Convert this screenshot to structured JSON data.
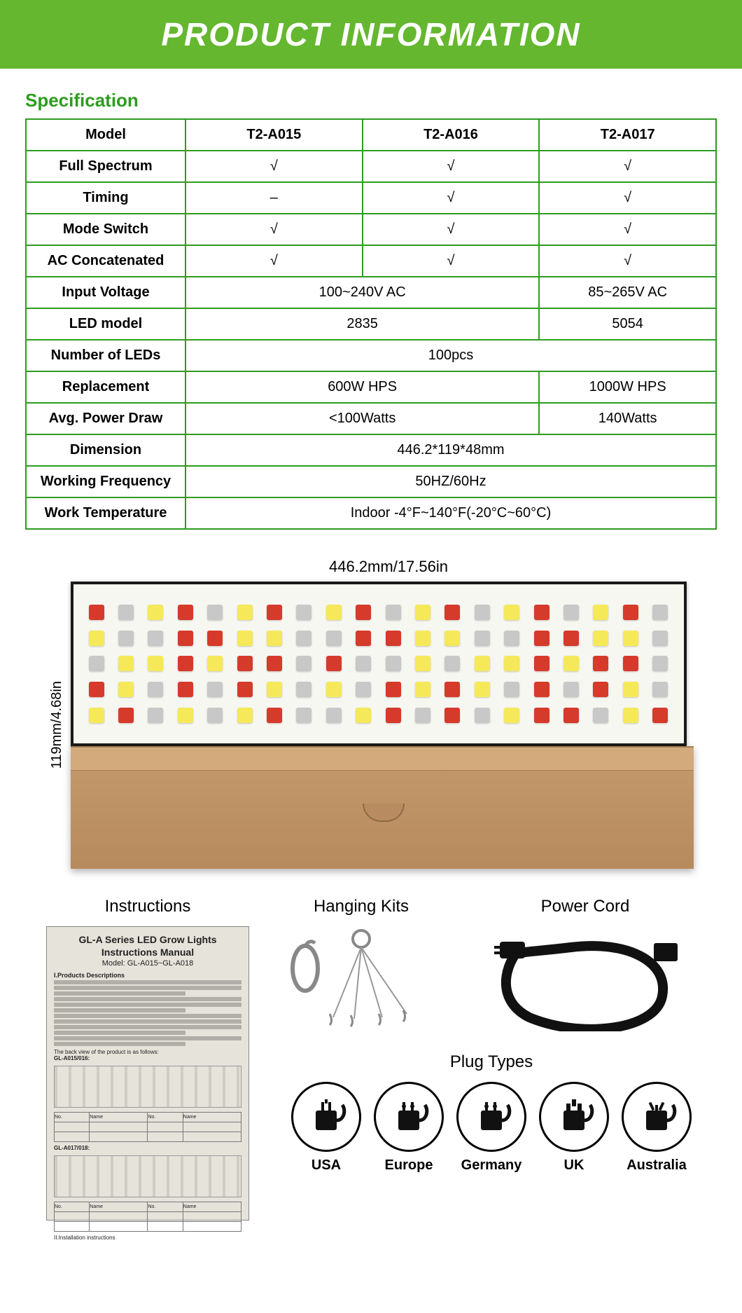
{
  "banner": "PRODUCT INFORMATION",
  "spec_heading": "Specification",
  "colors": {
    "accent": "#64b72f",
    "border": "#2d9c1f",
    "text": "#000000",
    "bg": "#ffffff"
  },
  "table": {
    "header": [
      "Model",
      "T2-A015",
      "T2-A016",
      "T2-A017"
    ],
    "rows": [
      {
        "label": "Full Spectrum",
        "cells": [
          "√",
          "√",
          "√"
        ],
        "spans": [
          1,
          1,
          1
        ]
      },
      {
        "label": "Timing",
        "cells": [
          "–",
          "√",
          "√"
        ],
        "spans": [
          1,
          1,
          1
        ]
      },
      {
        "label": "Mode Switch",
        "cells": [
          "√",
          "√",
          "√"
        ],
        "spans": [
          1,
          1,
          1
        ]
      },
      {
        "label": "AC Concatenated",
        "cells": [
          "√",
          "√",
          "√"
        ],
        "spans": [
          1,
          1,
          1
        ]
      },
      {
        "label": "Input Voltage",
        "cells": [
          "100~240V AC",
          "85~265V AC"
        ],
        "spans": [
          2,
          1
        ]
      },
      {
        "label": "LED model",
        "cells": [
          "2835",
          "5054"
        ],
        "spans": [
          2,
          1
        ]
      },
      {
        "label": "Number of LEDs",
        "cells": [
          "100pcs"
        ],
        "spans": [
          3
        ]
      },
      {
        "label": "Replacement",
        "cells": [
          "600W HPS",
          "1000W HPS"
        ],
        "spans": [
          2,
          1
        ]
      },
      {
        "label": "Avg. Power Draw",
        "cells": [
          "<100Watts",
          "140Watts"
        ],
        "spans": [
          2,
          1
        ]
      },
      {
        "label": "Dimension",
        "cells": [
          "446.2*119*48mm"
        ],
        "spans": [
          3
        ]
      },
      {
        "label": "Working Frequency",
        "cells": [
          "50HZ/60Hz"
        ],
        "spans": [
          3
        ]
      },
      {
        "label": "Work Temperature",
        "cells": [
          "Indoor -4°F~140°F(-20°C~60°C)"
        ],
        "spans": [
          3
        ]
      }
    ]
  },
  "dimensions": {
    "width_label": "446.2mm/17.56in",
    "height_label": "119mm/4.68in"
  },
  "led_panel": {
    "rows": 5,
    "cols": 20,
    "colors": [
      "#d63a2a",
      "#e8a23a",
      "#f5e95a",
      "#3a5fd6",
      "#c8c8c8",
      "#555555"
    ]
  },
  "accessories": {
    "instructions": {
      "title": "Instructions",
      "header": "GL-A Series LED Grow Lights",
      "sub1": "Instructions Manual",
      "sub2": "Model: GL-A015~GL-A018"
    },
    "hanging": {
      "title": "Hanging Kits"
    },
    "power_cord": {
      "title": "Power Cord"
    },
    "plugs": {
      "title": "Plug Types",
      "items": [
        {
          "label": "USA"
        },
        {
          "label": "Europe"
        },
        {
          "label": "Germany"
        },
        {
          "label": "UK"
        },
        {
          "label": "Australia"
        }
      ]
    }
  }
}
